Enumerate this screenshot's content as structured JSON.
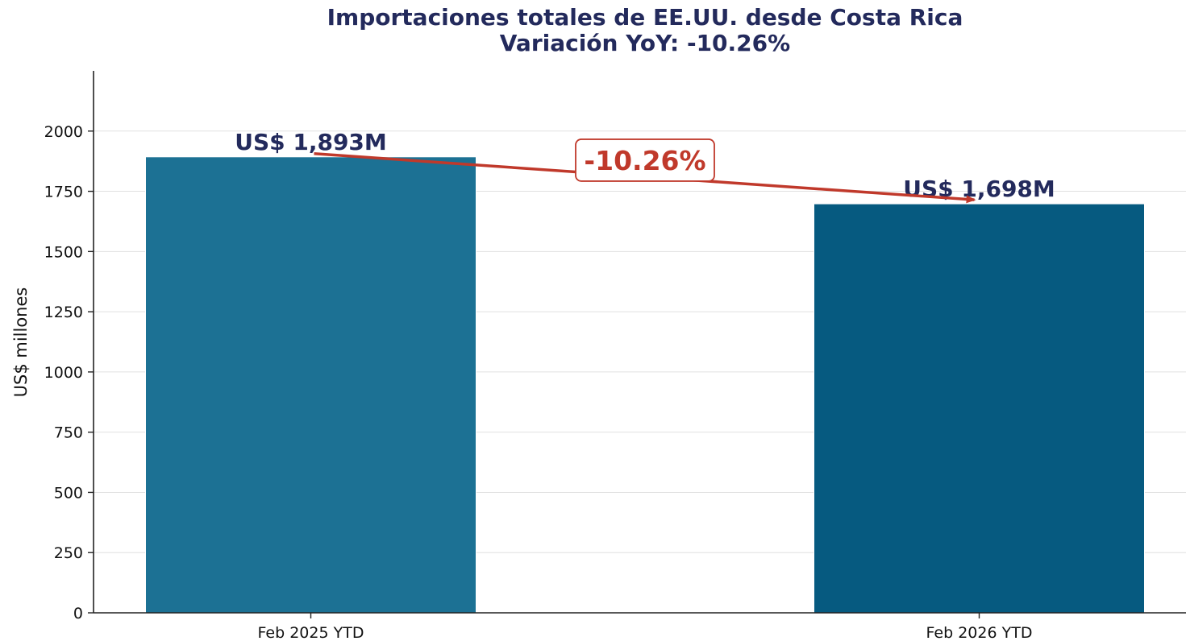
{
  "chart_data": {
    "type": "bar",
    "title": "Importaciones totales de EE.UU. desde Costa Rica",
    "subtitle": "Variación YoY: -10.26%",
    "xlabel": "",
    "ylabel": "US$ millones",
    "categories": [
      "Feb 2025 YTD",
      "Feb 2026 YTD"
    ],
    "values": [
      1893,
      1698
    ],
    "data_labels": [
      "US$ 1,893M",
      "US$ 1,698M"
    ],
    "bar_colors": [
      "#1c7194",
      "#065a80"
    ],
    "ylim": [
      0,
      2250
    ],
    "yticks": [
      0,
      250,
      500,
      750,
      1000,
      1250,
      1500,
      1750,
      2000
    ],
    "grid": true,
    "annotation": {
      "text": "-10.26%",
      "color": "#c0392b",
      "from_category": "Feb 2025 YTD",
      "to_category": "Feb 2026 YTD"
    }
  }
}
